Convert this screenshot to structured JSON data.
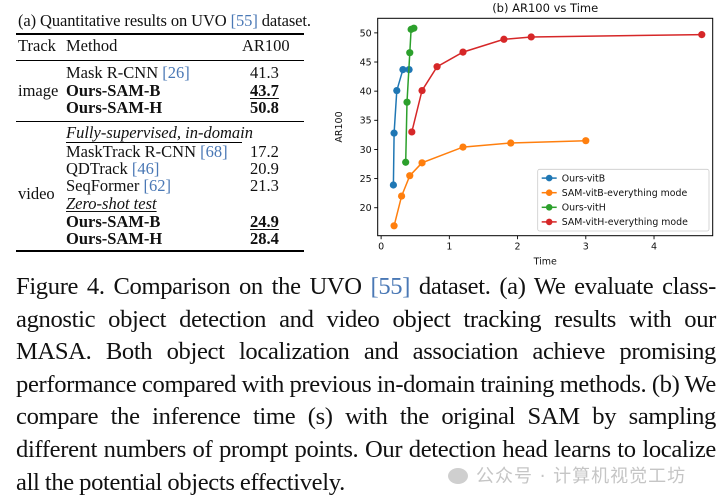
{
  "table": {
    "title_prefix": "(a) Quantitative results on UVO ",
    "title_cite": "[55]",
    "title_suffix": " dataset.",
    "headers": {
      "track": "Track",
      "method": "Method",
      "metric": "AR100"
    },
    "image_group": {
      "track": "image",
      "rows": [
        {
          "method": "Mask R-CNN ",
          "cite": "[26]",
          "value": "41.3",
          "bold": false,
          "underline": false
        },
        {
          "method": "Ours-SAM-B",
          "cite": "",
          "value": "43.7",
          "bold": true,
          "underline": true
        },
        {
          "method": "Ours-SAM-H",
          "cite": "",
          "value": "50.8",
          "bold": true,
          "underline": false
        }
      ]
    },
    "video_group": {
      "track": "video",
      "subhead_supervised": "Fully-supervised, in-domain",
      "supervised_rows": [
        {
          "method": "MaskTrack R-CNN ",
          "cite": "[68]",
          "value": "17.2"
        },
        {
          "method": "QDTrack ",
          "cite": "[46]",
          "value": "20.9"
        },
        {
          "method": "SeqFormer ",
          "cite": "[62]",
          "value": "21.3"
        }
      ],
      "subhead_zeroshot": "Zero-shot test",
      "zeroshot_rows": [
        {
          "method": "Ours-SAM-B",
          "value": "24.9",
          "underline": true
        },
        {
          "method": "Ours-SAM-H",
          "value": "28.4",
          "underline": false
        }
      ]
    }
  },
  "chart_data": {
    "type": "line",
    "title": "(b) AR100 vs Time",
    "xlabel": "Time",
    "ylabel": "AR100",
    "xlim": [
      -0.05,
      4.86
    ],
    "ylim": [
      15.2,
      52.5
    ],
    "xticks": [
      0,
      1,
      2,
      3,
      4
    ],
    "yticks": [
      20,
      25,
      30,
      35,
      40,
      45,
      50
    ],
    "grid": false,
    "legend_position": "lower right",
    "series": [
      {
        "name": "Ours-vitB",
        "color": "#1f77b4",
        "x": [
          0.18,
          0.19,
          0.23,
          0.32,
          0.41
        ],
        "y": [
          23.9,
          32.8,
          40.1,
          43.7,
          43.7
        ]
      },
      {
        "name": "SAM-vitB-everything mode",
        "color": "#ff7f0e",
        "x": [
          0.19,
          0.3,
          0.42,
          0.6,
          1.2,
          1.9,
          3.0
        ],
        "y": [
          16.9,
          22.0,
          25.5,
          27.7,
          30.4,
          31.1,
          31.5
        ]
      },
      {
        "name": "Ours-vitH",
        "color": "#2ca02c",
        "x": [
          0.36,
          0.38,
          0.42,
          0.44,
          0.48
        ],
        "y": [
          27.8,
          38.1,
          46.6,
          50.6,
          50.8
        ]
      },
      {
        "name": "SAM-vitH-everything mode",
        "color": "#d62728",
        "x": [
          0.45,
          0.6,
          0.82,
          1.2,
          1.8,
          2.2,
          4.7
        ],
        "y": [
          33.0,
          40.1,
          44.2,
          46.7,
          48.9,
          49.3,
          49.7
        ]
      }
    ]
  },
  "caption": {
    "label": "Figure 4.",
    "text_before_cite": " Comparison on the UVO ",
    "cite": "[55]",
    "text_after_cite": " dataset. (a) We evaluate class-agnostic object detection and video object tracking results with our MASA. Both object localization and association achieve promising performance compared with previous in-domain training methods. (b) We compare the inference time (s) with the original SAM by sampling different numbers of prompt points. Our detection head learns to localize all the potential objects effectively."
  },
  "watermark": {
    "text": "公众号 · 计算机视觉工坊"
  }
}
